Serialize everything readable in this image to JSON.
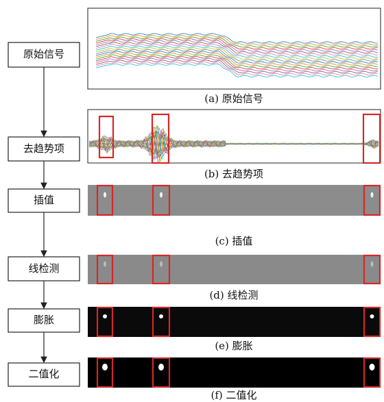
{
  "steps": [
    {
      "label": "原始信号",
      "caption": "(a) 原始信号"
    },
    {
      "label": "去趋势项",
      "caption": "(b) 去趋势项"
    },
    {
      "label": "插值",
      "caption": "(c) 插值"
    },
    {
      "label": "线检测",
      "caption": "(d) 线检测"
    },
    {
      "label": "膨胀",
      "caption": "(e) 膨胀"
    },
    {
      "label": "二值化",
      "caption": "(f) 二值化"
    }
  ]
}
